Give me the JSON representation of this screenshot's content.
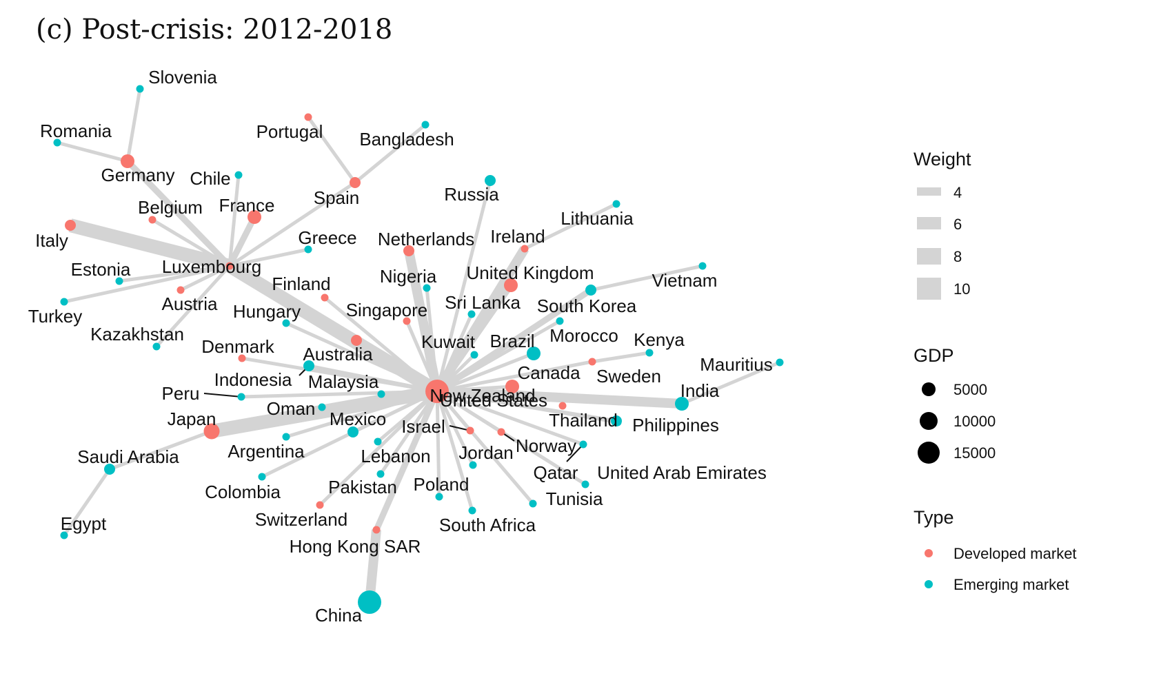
{
  "title": "(c) Post-crisis: 2012-2018",
  "colors": {
    "developed": "#F8766D",
    "emerging": "#00BFC4",
    "edge": "#d4d4d4"
  },
  "legend": {
    "weight": {
      "title": "Weight",
      "items": [
        "4",
        "6",
        "8",
        "10"
      ]
    },
    "gdp": {
      "title": "GDP",
      "items": [
        "5000",
        "10000",
        "15000"
      ]
    },
    "type": {
      "title": "Type",
      "items": [
        "Developed market",
        "Emerging market"
      ]
    }
  },
  "network": {
    "nodes": [
      {
        "id": "New Zealand",
        "type": "developed",
        "size": "xl"
      },
      {
        "id": "Luxembourg",
        "type": "developed",
        "size": "xs"
      },
      {
        "id": "Slovenia",
        "type": "emerging",
        "size": "xs"
      },
      {
        "id": "Romania",
        "type": "emerging",
        "size": "xs"
      },
      {
        "id": "Germany",
        "type": "developed",
        "size": "m"
      },
      {
        "id": "Portugal",
        "type": "developed",
        "size": "xs"
      },
      {
        "id": "Bangladesh",
        "type": "emerging",
        "size": "xs"
      },
      {
        "id": "Chile",
        "type": "emerging",
        "size": "xs"
      },
      {
        "id": "Spain",
        "type": "developed",
        "size": "s"
      },
      {
        "id": "Russia",
        "type": "emerging",
        "size": "s"
      },
      {
        "id": "Belgium",
        "type": "developed",
        "size": "xs"
      },
      {
        "id": "France",
        "type": "developed",
        "size": "m"
      },
      {
        "id": "Lithuania",
        "type": "emerging",
        "size": "xs"
      },
      {
        "id": "Italy",
        "type": "developed",
        "size": "s"
      },
      {
        "id": "Greece",
        "type": "emerging",
        "size": "xs"
      },
      {
        "id": "Netherlands",
        "type": "developed",
        "size": "s"
      },
      {
        "id": "Ireland",
        "type": "developed",
        "size": "xs"
      },
      {
        "id": "Estonia",
        "type": "emerging",
        "size": "xs"
      },
      {
        "id": "Nigeria",
        "type": "emerging",
        "size": "xs"
      },
      {
        "id": "United Kingdom",
        "type": "developed",
        "size": "m"
      },
      {
        "id": "Vietnam",
        "type": "emerging",
        "size": "xs"
      },
      {
        "id": "Finland",
        "type": "developed",
        "size": "xs"
      },
      {
        "id": "Turkey",
        "type": "emerging",
        "size": "xs"
      },
      {
        "id": "Austria",
        "type": "developed",
        "size": "xs"
      },
      {
        "id": "Sri Lanka",
        "type": "emerging",
        "size": "xs"
      },
      {
        "id": "South Korea",
        "type": "emerging",
        "size": "s"
      },
      {
        "id": "Hungary",
        "type": "emerging",
        "size": "xs"
      },
      {
        "id": "Singapore",
        "type": "developed",
        "size": "xs"
      },
      {
        "id": "Kazakhstan",
        "type": "emerging",
        "size": "xs"
      },
      {
        "id": "Kuwait",
        "type": "emerging",
        "size": "xs"
      },
      {
        "id": "Brazil",
        "type": "emerging",
        "size": "m"
      },
      {
        "id": "Morocco",
        "type": "emerging",
        "size": "xs"
      },
      {
        "id": "Kenya",
        "type": "emerging",
        "size": "xs"
      },
      {
        "id": "Denmark",
        "type": "developed",
        "size": "xs"
      },
      {
        "id": "Australia",
        "type": "developed",
        "size": "s"
      },
      {
        "id": "Mauritius",
        "type": "emerging",
        "size": "xs"
      },
      {
        "id": "Indonesia",
        "type": "emerging",
        "size": "s"
      },
      {
        "id": "Canada",
        "type": "developed",
        "size": "m"
      },
      {
        "id": "Sweden",
        "type": "developed",
        "size": "xs"
      },
      {
        "id": "Malaysia",
        "type": "emerging",
        "size": "xs"
      },
      {
        "id": "India",
        "type": "emerging",
        "size": "m"
      },
      {
        "id": "Peru",
        "type": "emerging",
        "size": "xs"
      },
      {
        "id": "United States",
        "type": "developed",
        "size": "xs"
      },
      {
        "id": "Oman",
        "type": "emerging",
        "size": "xs"
      },
      {
        "id": "Thailand",
        "type": "emerging",
        "size": "s"
      },
      {
        "id": "Philippines",
        "type": "emerging",
        "size": "xs"
      },
      {
        "id": "Japan",
        "type": "developed",
        "size": "l"
      },
      {
        "id": "Mexico",
        "type": "emerging",
        "size": "s"
      },
      {
        "id": "Israel",
        "type": "developed",
        "size": "xs"
      },
      {
        "id": "Norway",
        "type": "developed",
        "size": "xs"
      },
      {
        "id": "Argentina",
        "type": "emerging",
        "size": "xs"
      },
      {
        "id": "Jordan",
        "type": "emerging",
        "size": "xs"
      },
      {
        "id": "Saudi Arabia",
        "type": "emerging",
        "size": "s"
      },
      {
        "id": "Lebanon",
        "type": "emerging",
        "size": "xs"
      },
      {
        "id": "Qatar",
        "type": "emerging",
        "size": "xs"
      },
      {
        "id": "United Arab Emirates",
        "type": "emerging",
        "size": "xs"
      },
      {
        "id": "Colombia",
        "type": "emerging",
        "size": "xs"
      },
      {
        "id": "Pakistan",
        "type": "emerging",
        "size": "xs"
      },
      {
        "id": "Poland",
        "type": "emerging",
        "size": "xs"
      },
      {
        "id": "Tunisia",
        "type": "emerging",
        "size": "xs"
      },
      {
        "id": "Switzerland",
        "type": "developed",
        "size": "xs"
      },
      {
        "id": "South Africa",
        "type": "emerging",
        "size": "xs"
      },
      {
        "id": "Egypt",
        "type": "emerging",
        "size": "xs"
      },
      {
        "id": "Hong Kong SAR",
        "type": "developed",
        "size": "xs"
      },
      {
        "id": "China",
        "type": "emerging",
        "size": "xl"
      }
    ],
    "edges": [
      [
        "Germany",
        "Slovenia",
        4
      ],
      [
        "Germany",
        "Romania",
        4
      ],
      [
        "Germany",
        "Luxembourg",
        6
      ],
      [
        "Spain",
        "Portugal",
        4
      ],
      [
        "Spain",
        "Bangladesh",
        4
      ],
      [
        "Spain",
        "Luxembourg",
        4
      ],
      [
        "Chile",
        "Luxembourg",
        4
      ],
      [
        "France",
        "Luxembourg",
        6
      ],
      [
        "Belgium",
        "Luxembourg",
        4
      ],
      [
        "Italy",
        "Luxembourg",
        10
      ],
      [
        "Greece",
        "Luxembourg",
        4
      ],
      [
        "Estonia",
        "Luxembourg",
        4
      ],
      [
        "Turkey",
        "Luxembourg",
        4
      ],
      [
        "Austria",
        "Luxembourg",
        4
      ],
      [
        "Kazakhstan",
        "Luxembourg",
        4
      ],
      [
        "Luxembourg",
        "New Zealand",
        10
      ],
      [
        "Ireland",
        "Lithuania",
        4
      ],
      [
        "Ireland",
        "New Zealand",
        8
      ],
      [
        "Russia",
        "New Zealand",
        4
      ],
      [
        "Netherlands",
        "New Zealand",
        8
      ],
      [
        "United Kingdom",
        "New Zealand",
        6
      ],
      [
        "Nigeria",
        "New Zealand",
        4
      ],
      [
        "Finland",
        "New Zealand",
        4
      ],
      [
        "Hungary",
        "New Zealand",
        4
      ],
      [
        "Singapore",
        "New Zealand",
        4
      ],
      [
        "Sri Lanka",
        "New Zealand",
        4
      ],
      [
        "South Korea",
        "Vietnam",
        4
      ],
      [
        "South Korea",
        "New Zealand",
        6
      ],
      [
        "Morocco",
        "New Zealand",
        4
      ],
      [
        "Kuwait",
        "New Zealand",
        4
      ],
      [
        "Brazil",
        "New Zealand",
        4
      ],
      [
        "Australia",
        "New Zealand",
        6
      ],
      [
        "Denmark",
        "New Zealand",
        4
      ],
      [
        "Indonesia",
        "New Zealand",
        4
      ],
      [
        "Malaysia",
        "New Zealand",
        4
      ],
      [
        "Peru",
        "New Zealand",
        4
      ],
      [
        "Canada",
        "New Zealand",
        4
      ],
      [
        "Sweden",
        "Kenya",
        4
      ],
      [
        "Sweden",
        "New Zealand",
        4
      ],
      [
        "India",
        "Mauritius",
        4
      ],
      [
        "India",
        "New Zealand",
        8
      ],
      [
        "Thailand",
        "New Zealand",
        4
      ],
      [
        "Philippines",
        "New Zealand",
        4
      ],
      [
        "Oman",
        "New Zealand",
        4
      ],
      [
        "Japan",
        "Saudi Arabia",
        4
      ],
      [
        "Japan",
        "New Zealand",
        10
      ],
      [
        "Saudi Arabia",
        "Egypt",
        4
      ],
      [
        "Mexico",
        "New Zealand",
        4
      ],
      [
        "Argentina",
        "New Zealand",
        4
      ],
      [
        "Colombia",
        "New Zealand",
        4
      ],
      [
        "Lebanon",
        "New Zealand",
        4
      ],
      [
        "Pakistan",
        "New Zealand",
        4
      ],
      [
        "Switzerland",
        "New Zealand",
        4
      ],
      [
        "Poland",
        "New Zealand",
        4
      ],
      [
        "South Africa",
        "New Zealand",
        4
      ],
      [
        "Jordan",
        "New Zealand",
        4
      ],
      [
        "Israel",
        "New Zealand",
        4
      ],
      [
        "Norway",
        "New Zealand",
        4
      ],
      [
        "Qatar",
        "New Zealand",
        4
      ],
      [
        "United Arab Emirates",
        "New Zealand",
        4
      ],
      [
        "Tunisia",
        "New Zealand",
        4
      ],
      [
        "Hong Kong SAR",
        "New Zealand",
        6
      ],
      [
        "Hong Kong SAR",
        "China",
        8
      ]
    ]
  }
}
